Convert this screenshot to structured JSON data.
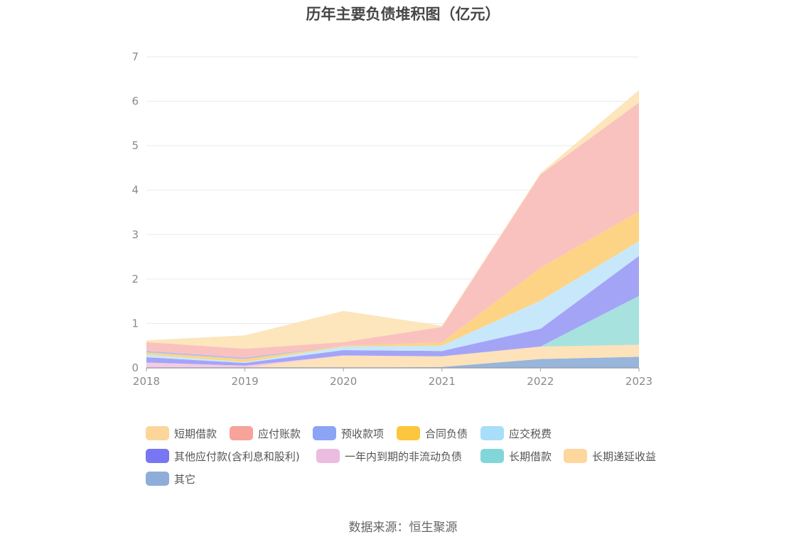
{
  "title": "历年主要负债堆积图（亿元）",
  "source": "数据来源：恒生聚源",
  "chart_data": {
    "type": "area",
    "stacked": true,
    "title": "历年主要负债堆积图（亿元）",
    "categories": [
      "2018",
      "2019",
      "2020",
      "2021",
      "2022",
      "2023"
    ],
    "ylim": [
      0,
      7
    ],
    "yticks": [
      "0",
      "1",
      "2",
      "3",
      "4",
      "5",
      "6",
      "7"
    ],
    "grid": true,
    "legend_position": "bottom",
    "series": [
      {
        "name": "其它",
        "color": "#8fafd8",
        "values": [
          0.0,
          0.0,
          0.0,
          0.02,
          0.2,
          0.25
        ]
      },
      {
        "name": "长期递延收益",
        "color": "#fde0b4",
        "values": [
          0.0,
          0.0,
          0.28,
          0.24,
          0.28,
          0.27
        ]
      },
      {
        "name": "长期借款",
        "color": "#9fe0dc",
        "values": [
          0.0,
          0.0,
          0.0,
          0.0,
          0.0,
          1.1
        ]
      },
      {
        "name": "一年内到期的非流动负债",
        "color": "#f2c7e0",
        "values": [
          0.12,
          0.05,
          0.0,
          0.0,
          0.0,
          0.0
        ]
      },
      {
        "name": "其他应付款(含利息和股利)",
        "color": "#9c9cf6",
        "values": [
          0.12,
          0.06,
          0.12,
          0.12,
          0.4,
          0.9
        ]
      },
      {
        "name": "应交税费",
        "color": "#c2e6fb",
        "values": [
          0.06,
          0.02,
          0.08,
          0.12,
          0.63,
          0.33
        ]
      },
      {
        "name": "合同负债",
        "color": "#fdd07c",
        "values": [
          0.05,
          0.07,
          0.02,
          0.07,
          0.74,
          0.67
        ]
      },
      {
        "name": "预收款项",
        "color": "#a7b6f7",
        "values": [
          0.03,
          0.03,
          0.0,
          0.0,
          0.0,
          0.0
        ]
      },
      {
        "name": "应付账款",
        "color": "#f8bdb8",
        "values": [
          0.2,
          0.2,
          0.08,
          0.35,
          2.1,
          2.45
        ]
      },
      {
        "name": "短期借款",
        "color": "#fde3b6",
        "values": [
          0.04,
          0.3,
          0.7,
          0.03,
          0.03,
          0.28
        ]
      }
    ]
  },
  "legend": [
    {
      "label": "短期借款",
      "color": "#fcd699"
    },
    {
      "label": "应付账款",
      "color": "#f7a29b"
    },
    {
      "label": "预收款项",
      "color": "#8ca4f5"
    },
    {
      "label": "合同负债",
      "color": "#fcc63e"
    },
    {
      "label": "应交税费",
      "color": "#a8def9"
    },
    {
      "label": "其他应付款(含利息和股利)",
      "color": "#7876f2"
    },
    {
      "label": "一年内到期的非流动负债",
      "color": "#ebbbe0"
    },
    {
      "label": "长期借款",
      "color": "#82d6d8"
    },
    {
      "label": "长期递延收益",
      "color": "#fdd79c"
    },
    {
      "label": "其它",
      "color": "#8fadd9"
    }
  ]
}
